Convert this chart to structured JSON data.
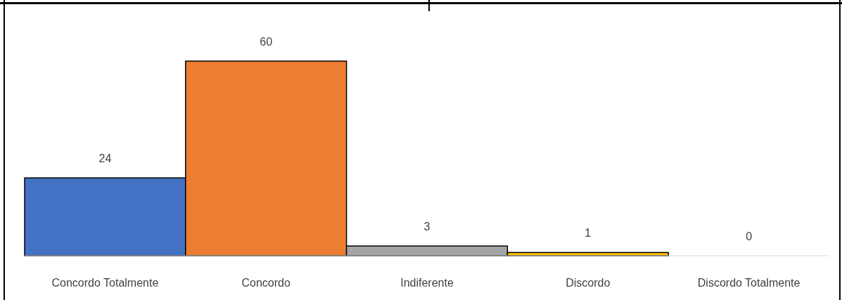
{
  "chart_data": {
    "type": "bar",
    "categories": [
      "Concordo Totalmente",
      "Concordo",
      "Indiferente",
      "Discordo",
      "Discordo Totalmente"
    ],
    "values": [
      24,
      60,
      3,
      1,
      0
    ],
    "colors": [
      "#4472c4",
      "#ed7d31",
      "#a5a5a5",
      "#ffc000",
      null
    ],
    "data_labels": true
  }
}
